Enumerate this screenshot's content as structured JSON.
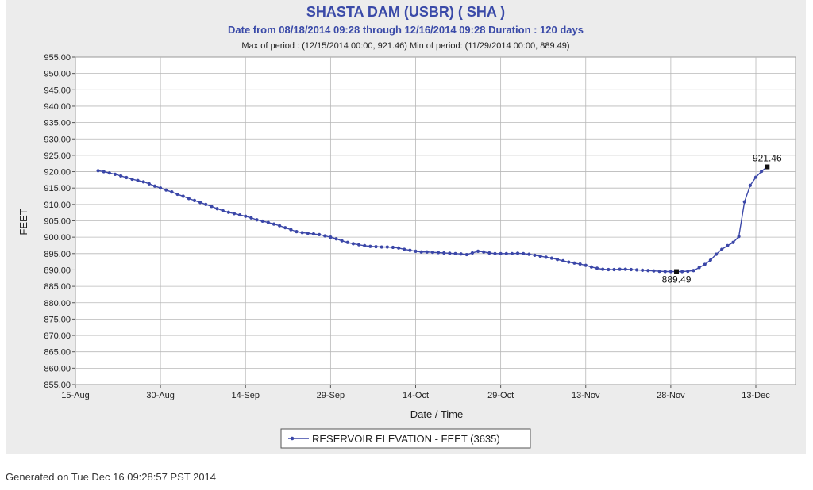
{
  "colors": {
    "title": "#3a4aa8",
    "subtitle": "#3a4aa8",
    "series": "#3b47a8",
    "grid": "#b8b8b8",
    "panel": "#ececec",
    "plot_bg": "#ffffff"
  },
  "footer": {
    "generated": "Generated on Tue Dec 16 09:28:57 PST 2014"
  },
  "chart_data": {
    "type": "line",
    "title": "SHASTA DAM  (USBR) ( SHA )",
    "subtitle": "Date from 08/18/2014 09:28 through 12/16/2014 09:28 Duration : 120 days",
    "period_info": "Max of period : (12/15/2014 00:00, 921.46)  Min of period: (11/29/2014 00:00,  889.49)",
    "xlabel": "Date / Time",
    "ylabel": "FEET",
    "xlim": [
      "2014-08-15",
      "2014-12-20"
    ],
    "ylim": [
      855,
      955
    ],
    "y_ticks": [
      "955.00",
      "950.00",
      "945.00",
      "940.00",
      "935.00",
      "930.00",
      "925.00",
      "920.00",
      "915.00",
      "910.00",
      "905.00",
      "900.00",
      "895.00",
      "890.00",
      "885.00",
      "880.00",
      "875.00",
      "870.00",
      "865.00",
      "860.00",
      "855.00"
    ],
    "x_ticks": [
      {
        "date": "2014-08-15",
        "label": "15-Aug"
      },
      {
        "date": "2014-08-30",
        "label": "30-Aug"
      },
      {
        "date": "2014-09-14",
        "label": "14-Sep"
      },
      {
        "date": "2014-09-29",
        "label": "29-Sep"
      },
      {
        "date": "2014-10-14",
        "label": "14-Oct"
      },
      {
        "date": "2014-10-29",
        "label": "29-Oct"
      },
      {
        "date": "2014-11-13",
        "label": "13-Nov"
      },
      {
        "date": "2014-11-28",
        "label": "28-Nov"
      },
      {
        "date": "2014-12-13",
        "label": "13-Dec"
      }
    ],
    "grid": true,
    "legend": "bottom-center",
    "series": [
      {
        "name": "RESERVOIR ELEVATION - FEET (3635)",
        "marker": "circle",
        "points": [
          [
            "2014-08-19",
            920.3
          ],
          [
            "2014-08-20",
            920.0
          ],
          [
            "2014-08-21",
            919.6
          ],
          [
            "2014-08-22",
            919.2
          ],
          [
            "2014-08-23",
            918.7
          ],
          [
            "2014-08-24",
            918.2
          ],
          [
            "2014-08-25",
            917.7
          ],
          [
            "2014-08-26",
            917.3
          ],
          [
            "2014-08-27",
            916.9
          ],
          [
            "2014-08-28",
            916.3
          ],
          [
            "2014-08-29",
            915.6
          ],
          [
            "2014-08-30",
            915.0
          ],
          [
            "2014-08-31",
            914.4
          ],
          [
            "2014-09-01",
            913.8
          ],
          [
            "2014-09-02",
            913.1
          ],
          [
            "2014-09-03",
            912.5
          ],
          [
            "2014-09-04",
            911.8
          ],
          [
            "2014-09-05",
            911.2
          ],
          [
            "2014-09-06",
            910.6
          ],
          [
            "2014-09-07",
            910.0
          ],
          [
            "2014-09-08",
            909.4
          ],
          [
            "2014-09-09",
            908.7
          ],
          [
            "2014-09-10",
            908.1
          ],
          [
            "2014-09-11",
            907.6
          ],
          [
            "2014-09-12",
            907.2
          ],
          [
            "2014-09-13",
            906.8
          ],
          [
            "2014-09-14",
            906.4
          ],
          [
            "2014-09-15",
            905.9
          ],
          [
            "2014-09-16",
            905.3
          ],
          [
            "2014-09-17",
            904.9
          ],
          [
            "2014-09-18",
            904.5
          ],
          [
            "2014-09-19",
            904.0
          ],
          [
            "2014-09-20",
            903.5
          ],
          [
            "2014-09-21",
            902.9
          ],
          [
            "2014-09-22",
            902.3
          ],
          [
            "2014-09-23",
            901.7
          ],
          [
            "2014-09-24",
            901.4
          ],
          [
            "2014-09-25",
            901.2
          ],
          [
            "2014-09-26",
            901.0
          ],
          [
            "2014-09-27",
            900.8
          ],
          [
            "2014-09-28",
            900.4
          ],
          [
            "2014-09-29",
            900.0
          ],
          [
            "2014-09-30",
            899.5
          ],
          [
            "2014-10-01",
            898.9
          ],
          [
            "2014-10-02",
            898.4
          ],
          [
            "2014-10-03",
            898.0
          ],
          [
            "2014-10-04",
            897.7
          ],
          [
            "2014-10-05",
            897.4
          ],
          [
            "2014-10-06",
            897.2
          ],
          [
            "2014-10-07",
            897.1
          ],
          [
            "2014-10-08",
            897.0
          ],
          [
            "2014-10-09",
            897.0
          ],
          [
            "2014-10-10",
            896.9
          ],
          [
            "2014-10-11",
            896.7
          ],
          [
            "2014-10-12",
            896.3
          ],
          [
            "2014-10-13",
            896.0
          ],
          [
            "2014-10-14",
            895.7
          ],
          [
            "2014-10-15",
            895.5
          ],
          [
            "2014-10-16",
            895.5
          ],
          [
            "2014-10-17",
            895.4
          ],
          [
            "2014-10-18",
            895.3
          ],
          [
            "2014-10-19",
            895.2
          ],
          [
            "2014-10-20",
            895.1
          ],
          [
            "2014-10-21",
            895.0
          ],
          [
            "2014-10-22",
            894.9
          ],
          [
            "2014-10-23",
            894.7
          ],
          [
            "2014-10-24",
            895.2
          ],
          [
            "2014-10-25",
            895.7
          ],
          [
            "2014-10-26",
            895.5
          ],
          [
            "2014-10-27",
            895.2
          ],
          [
            "2014-10-28",
            895.0
          ],
          [
            "2014-10-29",
            895.0
          ],
          [
            "2014-10-30",
            895.0
          ],
          [
            "2014-10-31",
            895.0
          ],
          [
            "2014-11-01",
            895.1
          ],
          [
            "2014-11-02",
            895.0
          ],
          [
            "2014-11-03",
            894.8
          ],
          [
            "2014-11-04",
            894.5
          ],
          [
            "2014-11-05",
            894.2
          ],
          [
            "2014-11-06",
            893.9
          ],
          [
            "2014-11-07",
            893.6
          ],
          [
            "2014-11-08",
            893.2
          ],
          [
            "2014-11-09",
            892.8
          ],
          [
            "2014-11-10",
            892.4
          ],
          [
            "2014-11-11",
            892.1
          ],
          [
            "2014-11-12",
            891.8
          ],
          [
            "2014-11-13",
            891.4
          ],
          [
            "2014-11-14",
            890.9
          ],
          [
            "2014-11-15",
            890.5
          ],
          [
            "2014-11-16",
            890.2
          ],
          [
            "2014-11-17",
            890.1
          ],
          [
            "2014-11-18",
            890.1
          ],
          [
            "2014-11-19",
            890.2
          ],
          [
            "2014-11-20",
            890.2
          ],
          [
            "2014-11-21",
            890.1
          ],
          [
            "2014-11-22",
            890.0
          ],
          [
            "2014-11-23",
            889.9
          ],
          [
            "2014-11-24",
            889.8
          ],
          [
            "2014-11-25",
            889.7
          ],
          [
            "2014-11-26",
            889.6
          ],
          [
            "2014-11-27",
            889.5
          ],
          [
            "2014-11-28",
            889.5
          ],
          [
            "2014-11-29",
            889.49
          ],
          [
            "2014-11-30",
            889.5
          ],
          [
            "2014-12-01",
            889.6
          ],
          [
            "2014-12-02",
            889.8
          ],
          [
            "2014-12-03",
            890.7
          ],
          [
            "2014-12-04",
            891.7
          ],
          [
            "2014-12-05",
            893.0
          ],
          [
            "2014-12-06",
            894.8
          ],
          [
            "2014-12-07",
            896.3
          ],
          [
            "2014-12-08",
            897.4
          ],
          [
            "2014-12-09",
            898.4
          ],
          [
            "2014-12-10",
            900.2
          ],
          [
            "2014-12-11",
            910.8
          ],
          [
            "2014-12-12",
            915.8
          ],
          [
            "2014-12-13",
            918.3
          ],
          [
            "2014-12-14",
            920.1
          ],
          [
            "2014-12-15",
            921.46
          ]
        ]
      }
    ],
    "annotations": [
      {
        "date": "2014-12-15",
        "value": 921.46,
        "text": "921.46",
        "position": "above"
      },
      {
        "date": "2014-11-29",
        "value": 889.49,
        "text": "889.49",
        "position": "below"
      }
    ]
  }
}
